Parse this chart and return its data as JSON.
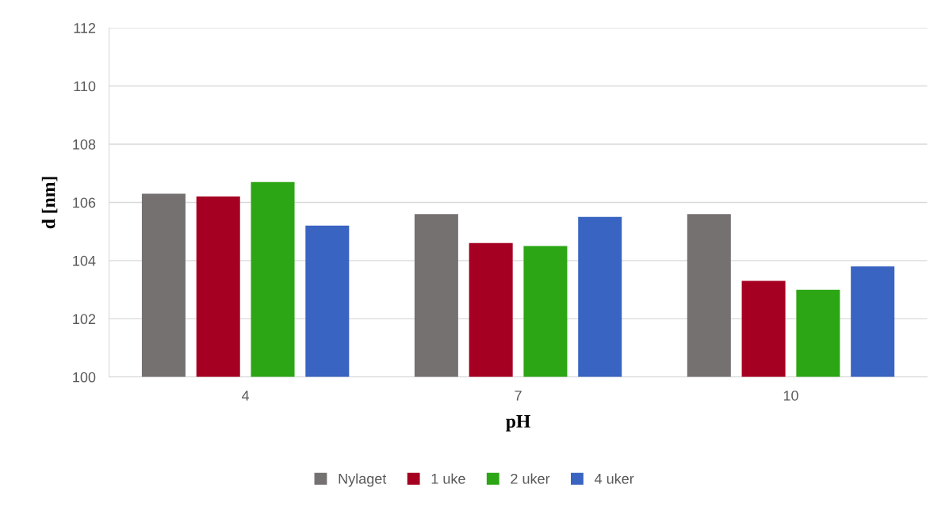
{
  "chart_data": {
    "type": "bar",
    "xlabel": "pH",
    "ylabel": "d [nm]",
    "categories": [
      "4",
      "7",
      "10"
    ],
    "series": [
      {
        "name": "Nylaget",
        "color": "#767171",
        "values": [
          106.3,
          105.6,
          105.6
        ]
      },
      {
        "name": "1 uke",
        "color": "#a50021",
        "values": [
          106.2,
          104.6,
          103.3
        ]
      },
      {
        "name": "2 uker",
        "color": "#2ca614",
        "values": [
          106.7,
          104.5,
          103.0
        ]
      },
      {
        "name": "4 uker",
        "color": "#3a64c1",
        "values": [
          105.2,
          105.5,
          103.8
        ]
      }
    ],
    "ylim": [
      100,
      112
    ],
    "yticks": [
      100,
      102,
      104,
      106,
      108,
      110,
      112
    ],
    "grid": "y",
    "legend": "bottom"
  }
}
